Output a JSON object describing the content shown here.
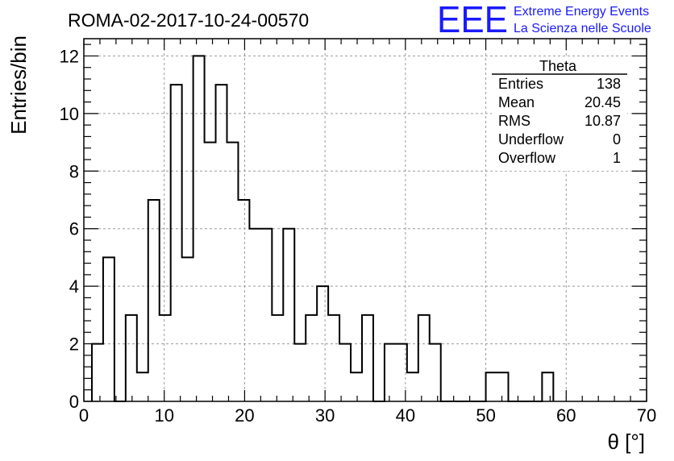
{
  "header": {
    "run_title": "ROMA-02-2017-10-24-00570",
    "logo": {
      "mark": "EEE",
      "line1": "Extreme Energy Events",
      "line2": "La Scienza nelle Scuole",
      "color": "#1a1aff"
    }
  },
  "stats_box": {
    "name": "Theta",
    "rows": [
      {
        "label": "Entries",
        "value": "138"
      },
      {
        "label": "Mean",
        "value": "20.45"
      },
      {
        "label": "RMS",
        "value": "10.87"
      },
      {
        "label": "Underflow",
        "value": "0"
      },
      {
        "label": "Overflow",
        "value": "1"
      }
    ]
  },
  "chart_data": {
    "type": "histogram",
    "title": "ROMA-02-2017-10-24-00570",
    "xlabel": "θ [°]",
    "ylabel": "Entries/bin",
    "xlim": [
      0,
      70
    ],
    "ylim": [
      0,
      12.6
    ],
    "x_ticks": [
      0,
      10,
      20,
      30,
      40,
      50,
      60,
      70
    ],
    "y_ticks": [
      0,
      2,
      4,
      6,
      8,
      10,
      12
    ],
    "grid": true,
    "bin_width": 1.4,
    "bin_start": 1.0,
    "values": [
      2,
      5,
      0,
      3,
      1,
      7,
      3,
      11,
      5,
      12,
      9,
      11,
      9,
      7,
      6,
      6,
      3,
      6,
      2,
      3,
      4,
      3,
      2,
      1,
      3,
      0,
      2,
      2,
      1,
      3,
      2,
      0,
      0,
      0,
      0,
      1,
      1,
      0,
      0,
      0,
      1
    ],
    "line_color": "#000000"
  }
}
